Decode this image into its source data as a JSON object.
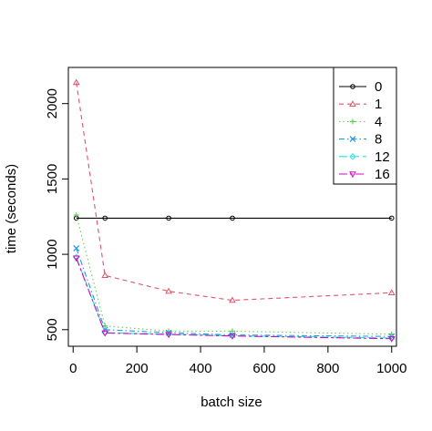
{
  "chart_data": {
    "type": "line",
    "title": "",
    "xlabel": "batch size",
    "ylabel": "time (seconds)",
    "xlim": [
      -15,
      1015
    ],
    "ylim": [
      390,
      2240
    ],
    "x_ticks": [
      0,
      200,
      400,
      600,
      800,
      1000
    ],
    "y_ticks": [
      500,
      1000,
      1500,
      2000
    ],
    "grid": false,
    "legend_position": "top-right",
    "x": [
      10,
      100,
      300,
      500,
      1000
    ],
    "series": [
      {
        "name": "0",
        "color": "#000000",
        "dash": "",
        "marker": "circle",
        "values": [
          1240,
          1240,
          1240,
          1240,
          1240
        ]
      },
      {
        "name": "1",
        "color": "#DF536B",
        "dash": "5,4",
        "marker": "triangle",
        "values": [
          2140,
          860,
          755,
          695,
          745
        ]
      },
      {
        "name": "4",
        "color": "#61D04F",
        "dash": "1.5,3",
        "marker": "plus",
        "values": [
          1260,
          525,
          490,
          490,
          470
        ]
      },
      {
        "name": "8",
        "color": "#2297E6",
        "dash": "6,3,1.5,3",
        "marker": "cross",
        "values": [
          1040,
          500,
          480,
          465,
          455
        ]
      },
      {
        "name": "12",
        "color": "#28E2E5",
        "dash": "9,4",
        "marker": "diamond",
        "values": [
          980,
          480,
          470,
          460,
          445
        ]
      },
      {
        "name": "16",
        "color": "#CD0BBC",
        "dash": "9,3,3,3",
        "marker": "triangle-down",
        "values": [
          975,
          478,
          468,
          458,
          440
        ]
      }
    ]
  }
}
